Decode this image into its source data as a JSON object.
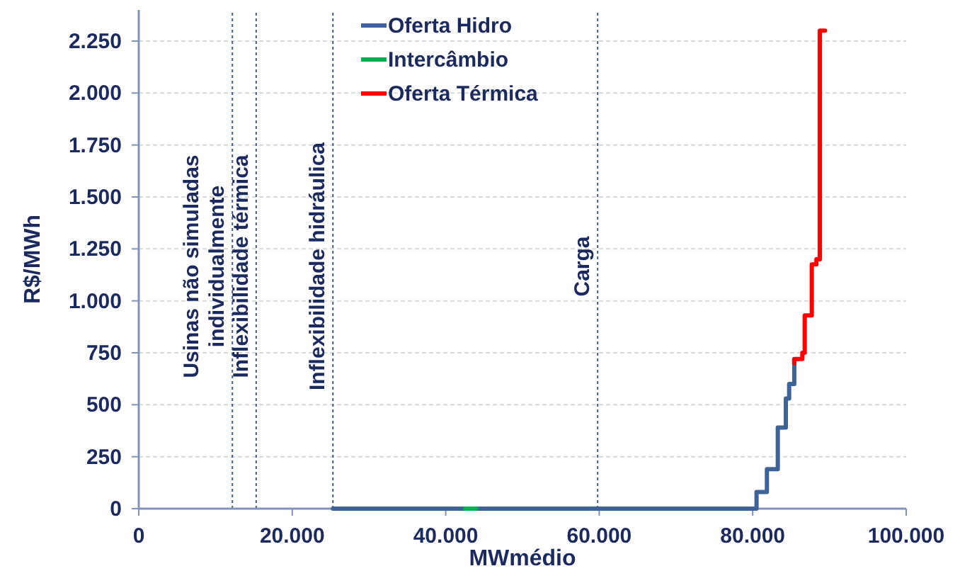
{
  "chart_data": {
    "type": "line",
    "xlabel": "MWmédio",
    "ylabel": "R$/MWh",
    "xlim": [
      0,
      100000
    ],
    "xticks": [
      0,
      {
        "value": 20000,
        "label": "20.000"
      },
      {
        "value": 40000,
        "label": "40.000"
      },
      {
        "value": 60000,
        "label": "60.000"
      },
      {
        "value": 80000,
        "label": "80.000"
      },
      {
        "value": 100000,
        "label": "100.000"
      }
    ],
    "ylim": [
      0,
      2400
    ],
    "yticks": [
      0,
      250,
      500,
      750,
      {
        "value": 1000,
        "label": "1.000"
      },
      {
        "value": 1250,
        "label": "1.250"
      },
      {
        "value": 1500,
        "label": "1.500"
      },
      {
        "value": 1750,
        "label": "1.750"
      },
      {
        "value": 2000,
        "label": "2.000"
      },
      {
        "value": 2250,
        "label": "2.250"
      }
    ],
    "grid": "y",
    "legend": "top",
    "marker": "none",
    "line_style": "solid",
    "series": [
      {
        "name": "Oferta Hidro",
        "color": "#3d6399",
        "x": [
          25300,
          80500,
          80500,
          81850,
          81850,
          83270,
          83270,
          84320,
          84320,
          84750,
          84750,
          85420,
          85420
        ],
        "values": [
          0,
          0,
          80,
          80,
          190,
          190,
          390,
          390,
          530,
          530,
          600,
          600,
          700
        ]
      },
      {
        "name": "Intercâmbio",
        "color": "#00b050",
        "x": [
          42500,
          44000
        ],
        "values": [
          0,
          0
        ]
      },
      {
        "name": "Oferta Térmica",
        "color": "#ff0000",
        "x": [
          85420,
          85420,
          86470,
          86470,
          86780,
          86780,
          87700,
          87700,
          88300,
          88300,
          88750,
          88750,
          88750,
          89430
        ],
        "values": [
          700,
          720,
          720,
          750,
          750,
          930,
          930,
          1175,
          1175,
          1200,
          1200,
          1400,
          2300,
          2300
        ]
      }
    ],
    "ref_lines": [
      {
        "axis": "x",
        "value": 12200,
        "label": "Usinas não simuladas individualmente",
        "line_style": "dotted"
      },
      {
        "axis": "x",
        "value": 15300,
        "label": "Inflexibilidade térmica",
        "line_style": "dotted"
      },
      {
        "axis": "x",
        "value": 25300,
        "label": "Inflexibilidade hidráulica",
        "line_style": "dotted"
      },
      {
        "axis": "x",
        "value": 59800,
        "label": "Carga",
        "line_style": "dotted"
      }
    ]
  }
}
